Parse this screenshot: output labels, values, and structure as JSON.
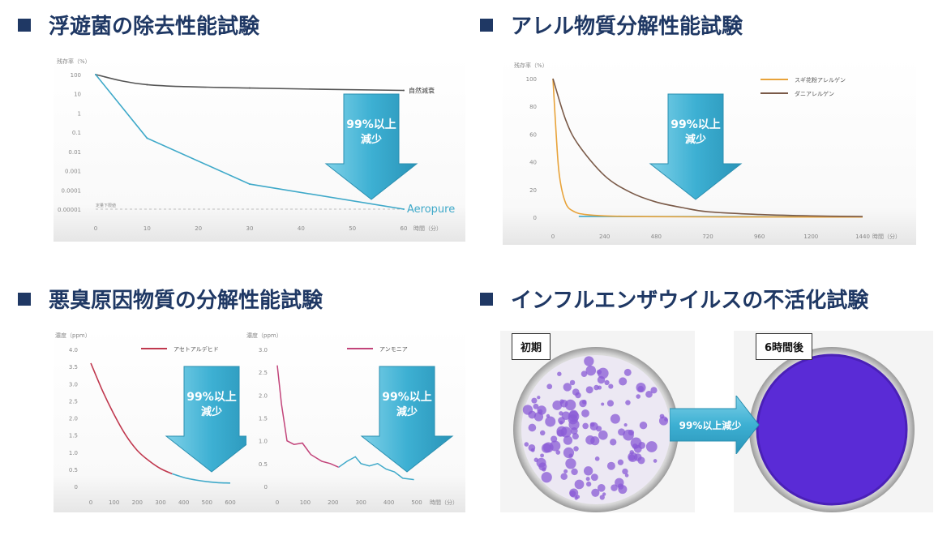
{
  "headings": [
    "浮遊菌の除去性能試験",
    "アレル物質分解性能試験",
    "悪臭原因物質の分解性能試験",
    "インフルエンザウイルスの不活化試験"
  ],
  "arrow_text": {
    "line1": "99%以上",
    "line2": "減少",
    "horizontal": "99%以上減少"
  },
  "colors": {
    "heading": "#1f3864",
    "arrow": "#3fb1d3",
    "curve_blue": "#3fa9c9"
  },
  "virus_test": {
    "before_label": "初期",
    "after_label": "6時間後"
  },
  "chart_data": [
    {
      "type": "line",
      "ylabel": "残存率（%）",
      "xlabel": "時間（分）",
      "y_scale": "log",
      "y_ticks": [
        "100",
        "10",
        "1",
        "0.1",
        "0.01",
        "0.001",
        "0.0001",
        "0.00001"
      ],
      "x_ticks": [
        0,
        10,
        20,
        30,
        40,
        50,
        60
      ],
      "xlim": [
        0,
        60
      ],
      "ylim_exponent": [
        -5,
        2
      ],
      "annotation": "定量下限値",
      "logo": "Aeropure",
      "series": [
        {
          "name": "自然減衰",
          "x": [
            0,
            10,
            30,
            60
          ],
          "y": [
            100,
            30,
            20,
            15
          ],
          "color": "#555555"
        },
        {
          "name": "",
          "x": [
            0,
            10,
            30,
            60
          ],
          "y": [
            100,
            0.05,
            0.0002,
            1e-05
          ],
          "color": "#3fa9c9"
        }
      ]
    },
    {
      "type": "line",
      "ylabel": "残存率（%）",
      "xlabel": "時間（分）",
      "y_ticks": [
        0,
        20,
        40,
        60,
        80,
        100
      ],
      "x_ticks": [
        0,
        240,
        480,
        720,
        960,
        1200,
        1440
      ],
      "xlim": [
        0,
        1440
      ],
      "ylim": [
        0,
        100
      ],
      "series": [
        {
          "name": "スギ花粉アレルゲン",
          "x": [
            0,
            15,
            30,
            60,
            100,
            150,
            240,
            400,
            720,
            1440
          ],
          "y": [
            100,
            60,
            30,
            10,
            4,
            2,
            1,
            0.5,
            0.3,
            0.2
          ],
          "color": "#e8a33a"
        },
        {
          "name": "ダニアレルゲン",
          "x": [
            0,
            60,
            120,
            240,
            360,
            480,
            600,
            720,
            960,
            1200,
            1440
          ],
          "y": [
            100,
            70,
            52,
            30,
            18,
            11,
            7,
            4,
            2,
            1,
            0.5
          ],
          "color": "#7a5a48"
        }
      ]
    },
    {
      "type": "line",
      "ylabel": "濃度（ppm）",
      "y_ticks": [
        "4.0",
        "3.5",
        "3.0",
        "2.5",
        "2.0",
        "1.5",
        "1.0",
        "0.5",
        "0"
      ],
      "x_ticks": [
        0,
        100,
        200,
        300,
        400,
        500,
        600
      ],
      "xlim": [
        0,
        600
      ],
      "ylim": [
        0,
        4
      ],
      "series": [
        {
          "name": "アセトアルデヒド",
          "x": [
            0,
            50,
            100,
            150,
            200,
            250,
            300,
            350,
            400,
            450,
            500,
            550,
            600
          ],
          "y": [
            3.6,
            2.8,
            2.1,
            1.5,
            1.05,
            0.75,
            0.52,
            0.37,
            0.26,
            0.19,
            0.14,
            0.11,
            0.1
          ],
          "color": "#c0384e"
        }
      ]
    },
    {
      "type": "line",
      "ylabel": "濃度（ppm）",
      "xlabel": "時間（分）",
      "y_ticks": [
        "3.0",
        "2.5",
        "2.0",
        "1.5",
        "1.0",
        "0.5",
        "0"
      ],
      "x_ticks": [
        0,
        100,
        200,
        300,
        400,
        500
      ],
      "xlim": [
        0,
        500
      ],
      "ylim": [
        0,
        3
      ],
      "series": [
        {
          "name": "アンモニア",
          "x": [
            0,
            15,
            35,
            60,
            90,
            120,
            160,
            190,
            220,
            250,
            280,
            300,
            330,
            360,
            390,
            420,
            450,
            490
          ],
          "y": [
            2.65,
            1.8,
            1.0,
            0.92,
            0.95,
            0.7,
            0.55,
            0.5,
            0.42,
            0.55,
            0.65,
            0.5,
            0.45,
            0.5,
            0.38,
            0.32,
            0.18,
            0.15
          ],
          "color": "#c2447a"
        }
      ]
    }
  ]
}
